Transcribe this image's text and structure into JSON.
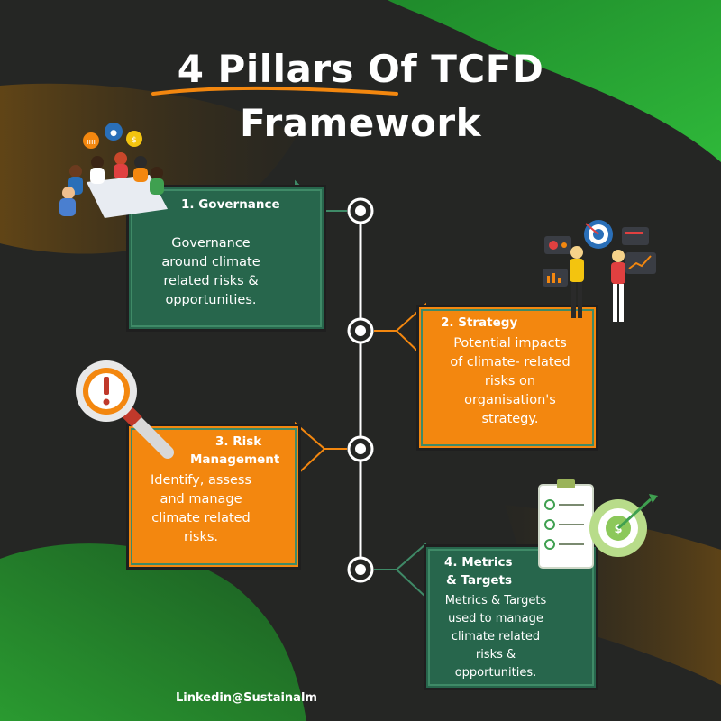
{
  "title": {
    "line1": "4 Pillars Of TCFD",
    "line2": "Framework"
  },
  "pillars": [
    {
      "heading": "1. Governance",
      "text": "Governance\naround climate\nrelated risks &\nopportunities.",
      "color": "#27664c"
    },
    {
      "heading": "2. Strategy",
      "text": "Potential impacts\nof climate- related\nrisks on\norganisation's\nstrategy.",
      "color": "#f3870f"
    },
    {
      "heading_line1": "3. Risk",
      "heading_line2": "Management",
      "text": "Identify, assess\nand manage\nclimate related\nrisks.",
      "color": "#f3870f"
    },
    {
      "heading_line1": "4. Metrics",
      "heading_line2": "& Targets",
      "text": "Metrics & Targets\nused to manage\nclimate related\nrisks &\nopportunities.",
      "color": "#27664c"
    }
  ],
  "footer": "Linkedin@Sustainalm",
  "colors": {
    "background": "#252624",
    "green": "#27664c",
    "orange": "#f3870f",
    "timeline": "#ffffff"
  },
  "icons": [
    "meeting-illustration-icon",
    "strategy-target-illustration-icon",
    "magnifier-warning-icon",
    "checklist-target-icon"
  ]
}
